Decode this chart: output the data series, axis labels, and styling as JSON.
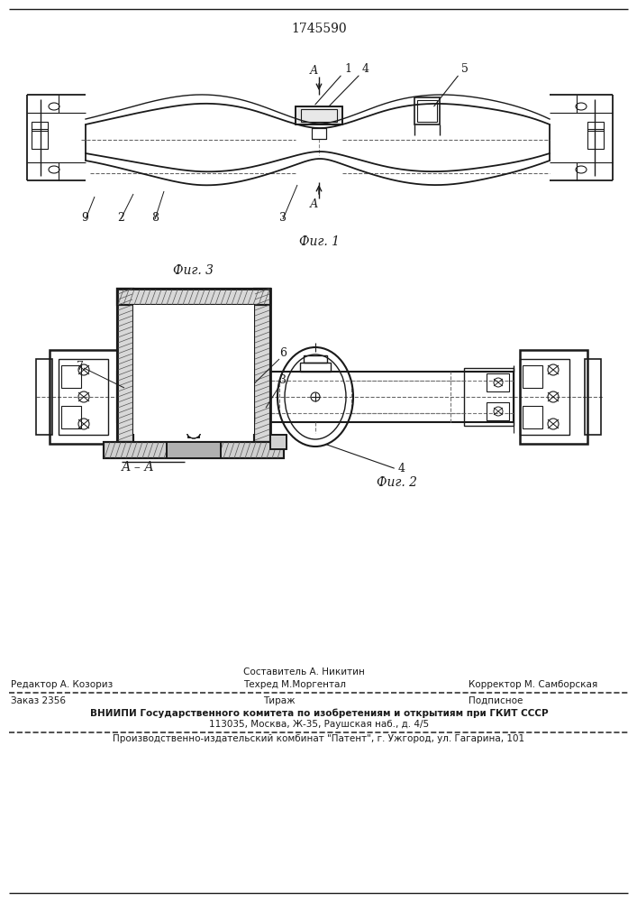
{
  "patent_number": "1745590",
  "bg_color": "#ffffff",
  "line_color": "#1a1a1a",
  "fig_width": 7.07,
  "fig_height": 10.0,
  "footer": {
    "line1_col2_top": "Составитель А. Никитин",
    "line1_col1": "Редактор А. Козориз",
    "line1_col2_bot": "Техред М.Моргентал",
    "line1_col3": "Корректор М. Самборская",
    "line2_col1": "Заказ 2356",
    "line2_col2": "Тираж",
    "line2_col3": "Подписное",
    "line3": "ВНИИПИ Государственного комитета по изобретениям и открытиям при ГКИТ СССР",
    "line4": "113035, Москва, Ж-35, Раушская наб., д. 4/5",
    "line5": "Производственно-издательский комбинат \"Патент\", г. Ужгород, ул. Гагарина, 101"
  }
}
